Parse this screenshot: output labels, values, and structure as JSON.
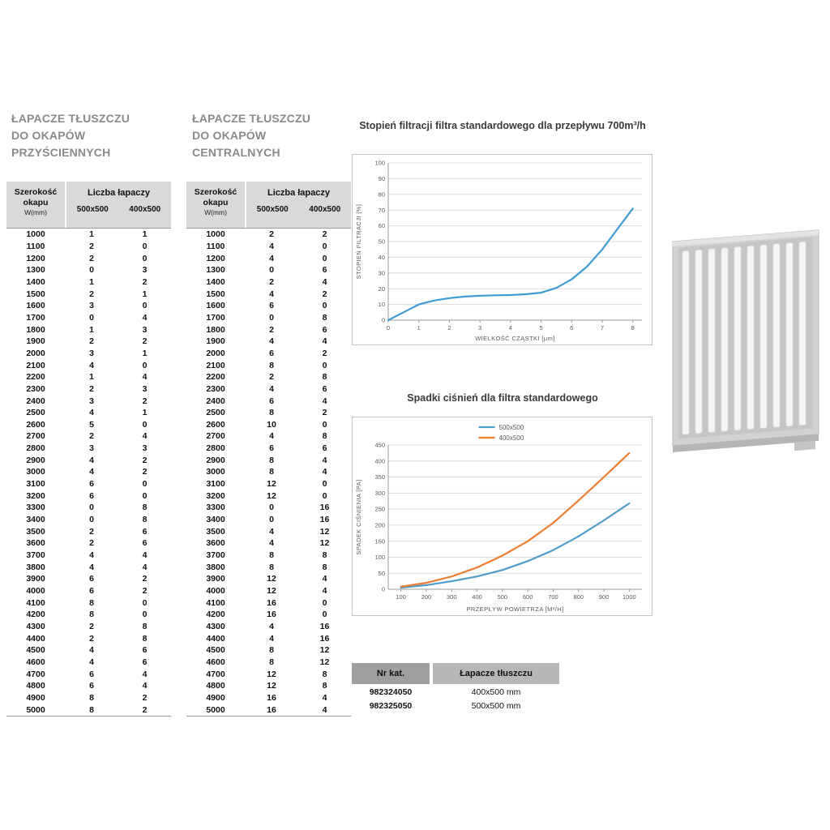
{
  "tables": [
    {
      "title_lines": [
        "ŁAPACZE TŁUSZCZU",
        "DO OKAPÓW",
        "PRZYŚCIENNYCH"
      ],
      "header": {
        "col1_lines": [
          "Szerokość",
          "okapu",
          "W(mm)"
        ],
        "group": "Liczba łapaczy",
        "sub": [
          "500x500",
          "400x500"
        ]
      },
      "rows": [
        [
          1000,
          1,
          1
        ],
        [
          1100,
          2,
          0
        ],
        [
          1200,
          2,
          0
        ],
        [
          1300,
          0,
          3
        ],
        [
          1400,
          1,
          2
        ],
        [
          1500,
          2,
          1
        ],
        [
          1600,
          3,
          0
        ],
        [
          1700,
          0,
          4
        ],
        [
          1800,
          1,
          3
        ],
        [
          1900,
          2,
          2
        ],
        [
          2000,
          3,
          1
        ],
        [
          2100,
          4,
          0
        ],
        [
          2200,
          1,
          4
        ],
        [
          2300,
          2,
          3
        ],
        [
          2400,
          3,
          2
        ],
        [
          2500,
          4,
          1
        ],
        [
          2600,
          5,
          0
        ],
        [
          2700,
          2,
          4
        ],
        [
          2800,
          3,
          3
        ],
        [
          2900,
          4,
          2
        ],
        [
          3000,
          4,
          2
        ],
        [
          3100,
          6,
          0
        ],
        [
          3200,
          6,
          0
        ],
        [
          3300,
          0,
          8
        ],
        [
          3400,
          0,
          8
        ],
        [
          3500,
          2,
          6
        ],
        [
          3600,
          2,
          6
        ],
        [
          3700,
          4,
          4
        ],
        [
          3800,
          4,
          4
        ],
        [
          3900,
          6,
          2
        ],
        [
          4000,
          6,
          2
        ],
        [
          4100,
          8,
          0
        ],
        [
          4200,
          8,
          0
        ],
        [
          4300,
          2,
          8
        ],
        [
          4400,
          2,
          8
        ],
        [
          4500,
          4,
          6
        ],
        [
          4600,
          4,
          6
        ],
        [
          4700,
          6,
          4
        ],
        [
          4800,
          6,
          4
        ],
        [
          4900,
          8,
          2
        ],
        [
          5000,
          8,
          2
        ]
      ]
    },
    {
      "title_lines": [
        "ŁAPACZE TŁUSZCZU",
        "DO OKAPÓW",
        "CENTRALNYCH"
      ],
      "header": {
        "col1_lines": [
          "Szerokość",
          "okapu",
          "W(mm)"
        ],
        "group": "Liczba łapaczy",
        "sub": [
          "500x500",
          "400x500"
        ]
      },
      "rows": [
        [
          1000,
          2,
          2
        ],
        [
          1100,
          4,
          0
        ],
        [
          1200,
          4,
          0
        ],
        [
          1300,
          0,
          6
        ],
        [
          1400,
          2,
          4
        ],
        [
          1500,
          4,
          2
        ],
        [
          1600,
          6,
          0
        ],
        [
          1700,
          0,
          8
        ],
        [
          1800,
          2,
          6
        ],
        [
          1900,
          4,
          4
        ],
        [
          2000,
          6,
          2
        ],
        [
          2100,
          8,
          0
        ],
        [
          2200,
          2,
          8
        ],
        [
          2300,
          4,
          6
        ],
        [
          2400,
          6,
          4
        ],
        [
          2500,
          8,
          2
        ],
        [
          2600,
          10,
          0
        ],
        [
          2700,
          4,
          8
        ],
        [
          2800,
          6,
          6
        ],
        [
          2900,
          8,
          4
        ],
        [
          3000,
          8,
          4
        ],
        [
          3100,
          12,
          0
        ],
        [
          3200,
          12,
          0
        ],
        [
          3300,
          0,
          16
        ],
        [
          3400,
          0,
          16
        ],
        [
          3500,
          4,
          12
        ],
        [
          3600,
          4,
          12
        ],
        [
          3700,
          8,
          8
        ],
        [
          3800,
          8,
          8
        ],
        [
          3900,
          12,
          4
        ],
        [
          4000,
          12,
          4
        ],
        [
          4100,
          16,
          0
        ],
        [
          4200,
          16,
          0
        ],
        [
          4300,
          4,
          16
        ],
        [
          4400,
          4,
          16
        ],
        [
          4500,
          8,
          12
        ],
        [
          4600,
          8,
          12
        ],
        [
          4700,
          12,
          8
        ],
        [
          4800,
          12,
          8
        ],
        [
          4900,
          16,
          4
        ],
        [
          5000,
          16,
          4
        ]
      ]
    }
  ],
  "chart_data": [
    {
      "type": "line",
      "title": "Stopień filtracji filtra standardowego dla przepływu 700m³/h",
      "xlabel": "WIELKOŚĆ CZĄSTKI [μm]",
      "ylabel": "STOPIEŃ FILTRACJI [%]",
      "xlim": [
        0,
        8
      ],
      "ylim": [
        0,
        100
      ],
      "xticks": [
        0,
        1,
        2,
        3,
        4,
        5,
        6,
        7,
        8
      ],
      "yticks": [
        0,
        10,
        20,
        30,
        40,
        50,
        60,
        70,
        80,
        90,
        100
      ],
      "grid": "horizontal",
      "legend_position": "none",
      "series": [
        {
          "name": "stopień filtracji",
          "color": "#3f9cd3",
          "x": [
            0,
            0.5,
            1,
            1.5,
            2,
            2.5,
            3,
            3.5,
            4,
            4.5,
            5,
            5.5,
            6,
            6.5,
            7,
            7.5,
            8
          ],
          "y": [
            0,
            5,
            10,
            12.5,
            14,
            15,
            15.5,
            15.8,
            16,
            16.5,
            17.5,
            20.5,
            26,
            34,
            45,
            58,
            71
          ]
        }
      ]
    },
    {
      "type": "line",
      "title": "Spadki ciśnień dla filtra standardowego",
      "xlabel": "PRZEPŁYW POWIETRZA [M³/H]",
      "ylabel": "SPADEK CIŚNIENIA [PA]",
      "xlim": [
        100,
        1000
      ],
      "ylim": [
        0,
        450
      ],
      "xticks": [
        100,
        200,
        300,
        400,
        500,
        600,
        700,
        800,
        900,
        1000
      ],
      "yticks": [
        0,
        50,
        100,
        150,
        200,
        250,
        300,
        350,
        400,
        450
      ],
      "grid": "horizontal",
      "legend_position": "top",
      "series": [
        {
          "name": "500x500",
          "color": "#4f9bc9",
          "x": [
            100,
            200,
            300,
            400,
            500,
            600,
            700,
            800,
            900,
            1000
          ],
          "y": [
            5,
            13,
            25,
            40,
            60,
            88,
            122,
            165,
            215,
            268
          ]
        },
        {
          "name": "400x500",
          "color": "#ed7d31",
          "x": [
            100,
            200,
            300,
            400,
            500,
            600,
            700,
            800,
            900,
            1000
          ],
          "y": [
            8,
            20,
            40,
            68,
            105,
            150,
            207,
            277,
            350,
            425
          ]
        }
      ]
    }
  ],
  "catalog_table": {
    "headers": [
      "Nr kat.",
      "Łapacze tłuszczu"
    ],
    "rows": [
      [
        "982324050",
        "400x500 mm"
      ],
      [
        "982325050",
        "500x500 mm"
      ]
    ]
  },
  "filter_image": {
    "name": "baffle-grease-filter",
    "slat_count": 10
  }
}
